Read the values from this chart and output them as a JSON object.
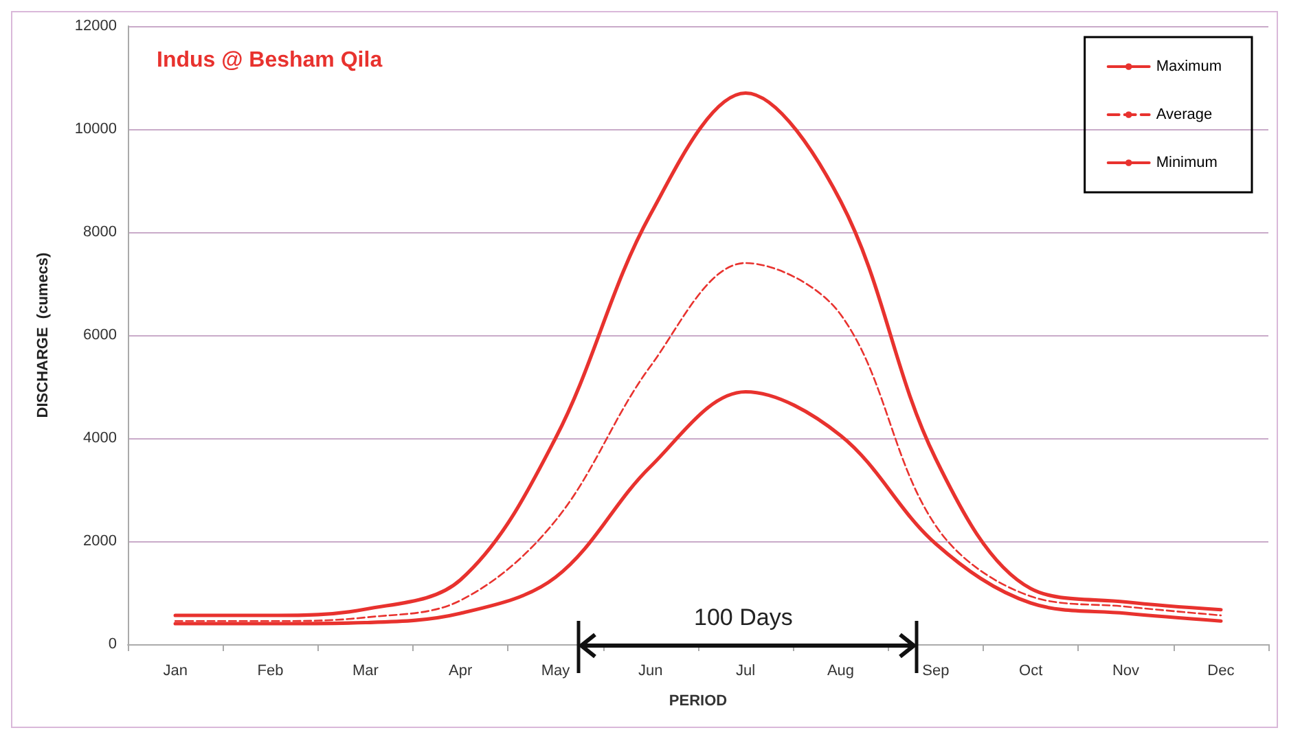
{
  "chart_data": {
    "type": "line",
    "title": "Indus @ Besham Qila",
    "xlabel": "PERIOD",
    "ylabel": "DISCHARGE  (cumecs)",
    "annotations": [
      "100 Days"
    ],
    "categories": [
      "Jan",
      "Feb",
      "Mar",
      "Apr",
      "May",
      "Jun",
      "Jul",
      "Aug",
      "Sep",
      "Oct",
      "Nov",
      "Dec"
    ],
    "series": [
      {
        "name": "Maximum",
        "color": "#e8322e",
        "line_style": "solid",
        "values": [
          560,
          560,
          680,
          1250,
          4000,
          8350,
          10700,
          8600,
          3600,
          1080,
          820,
          670
        ]
      },
      {
        "name": "Average",
        "color": "#e8322e",
        "line_style": "dashed",
        "values": [
          450,
          450,
          520,
          850,
          2400,
          5400,
          7400,
          6400,
          2300,
          930,
          730,
          560
        ]
      },
      {
        "name": "Minimum",
        "color": "#e8322e",
        "line_style": "solid",
        "values": [
          400,
          400,
          420,
          600,
          1300,
          3450,
          4900,
          4050,
          1950,
          800,
          600,
          450
        ]
      }
    ],
    "ylim": [
      0,
      12000
    ],
    "yticks": [
      0,
      2000,
      4000,
      6000,
      8000,
      10000,
      12000
    ],
    "grid": "y",
    "legend": "top right",
    "marker": "none"
  }
}
